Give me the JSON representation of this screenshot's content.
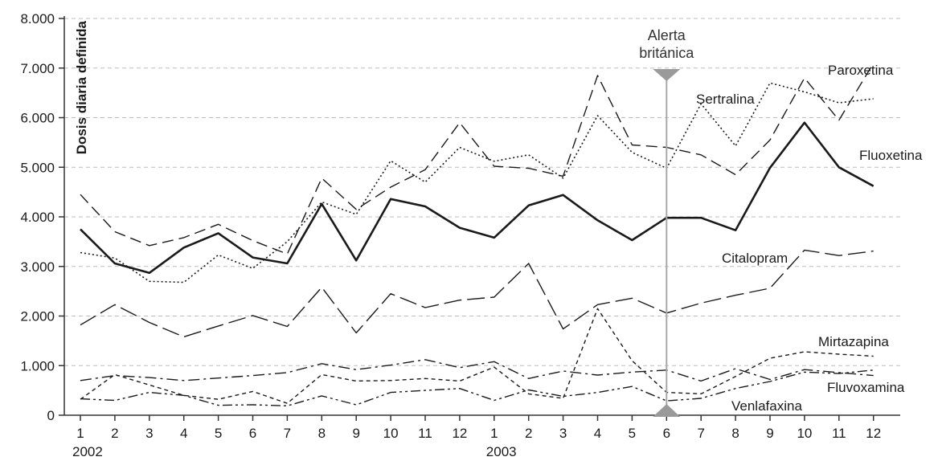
{
  "chart_data": {
    "type": "line",
    "ylabel": "Dosis diaria definida",
    "ylim": [
      0,
      8000
    ],
    "yticks": [
      "0",
      "1.000",
      "2.000",
      "3.000",
      "4.000",
      "5.000",
      "6.000",
      "7.000",
      "8.000"
    ],
    "categories": [
      "1",
      "2",
      "3",
      "4",
      "5",
      "6",
      "7",
      "8",
      "9",
      "10",
      "11",
      "12",
      "1",
      "2",
      "3",
      "4",
      "5",
      "6",
      "7",
      "8",
      "9",
      "10",
      "11",
      "12"
    ],
    "years": [
      {
        "label": "2002",
        "at_index": 0
      },
      {
        "label": "2003",
        "at_index": 12
      }
    ],
    "grid": true,
    "annotation": {
      "lines": [
        "Alerta",
        "británica"
      ],
      "at_index": 17
    },
    "series": [
      {
        "name": "Paroxetina",
        "style": "dashed",
        "values": [
          4450,
          3700,
          3420,
          3580,
          3850,
          3520,
          3250,
          4780,
          4150,
          4600,
          4950,
          5900,
          5020,
          4980,
          4820,
          6850,
          5450,
          5400,
          5250,
          4850,
          5550,
          6800,
          5950,
          7100
        ]
      },
      {
        "name": "Sertralina",
        "style": "dotted",
        "values": [
          3280,
          3170,
          2700,
          2680,
          3230,
          2960,
          3500,
          4300,
          4050,
          5130,
          4700,
          5400,
          5120,
          5250,
          4780,
          6040,
          5300,
          4980,
          6280,
          5430,
          6700,
          6520,
          6300,
          6380
        ]
      },
      {
        "name": "Fluoxetina",
        "style": "solid",
        "values": [
          3750,
          3060,
          2870,
          3380,
          3670,
          3180,
          3060,
          4260,
          3120,
          4360,
          4210,
          3780,
          3580,
          4230,
          4440,
          3930,
          3530,
          3980,
          3980,
          3730,
          4990,
          5900,
          5000,
          4620
        ]
      },
      {
        "name": "Citalopram",
        "style": "longdash",
        "values": [
          1820,
          2230,
          1870,
          1580,
          1800,
          2010,
          1790,
          2580,
          1660,
          2450,
          2170,
          2320,
          2380,
          3060,
          1740,
          2230,
          2360,
          2060,
          2260,
          2420,
          2560,
          3330,
          3220,
          3310
        ]
      },
      {
        "name": "Mirtazapina",
        "style": "shortdash",
        "values": [
          320,
          820,
          610,
          400,
          320,
          480,
          240,
          820,
          690,
          700,
          740,
          690,
          970,
          430,
          340,
          2150,
          1100,
          460,
          430,
          780,
          1150,
          1280,
          1230,
          1190
        ]
      },
      {
        "name": "Fluvoxamina",
        "style": "dashdot",
        "values": [
          700,
          800,
          760,
          700,
          750,
          800,
          860,
          1040,
          920,
          1010,
          1120,
          960,
          1080,
          740,
          890,
          810,
          870,
          910,
          690,
          940,
          720,
          920,
          860,
          800
        ]
      },
      {
        "name": "Venlafaxina",
        "style": "dashdotdot",
        "values": [
          330,
          300,
          460,
          400,
          200,
          210,
          190,
          390,
          210,
          460,
          500,
          540,
          300,
          510,
          380,
          460,
          580,
          290,
          340,
          540,
          680,
          870,
          840,
          910
        ]
      }
    ]
  }
}
